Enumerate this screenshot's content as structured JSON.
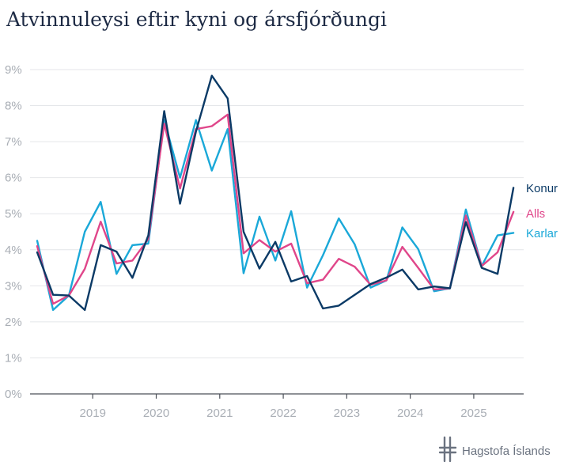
{
  "chart_data": {
    "type": "line",
    "title": "Atvinnuleysi eftir kyni og ársfjórðungi",
    "ylim": [
      0,
      9
    ],
    "y_ticks": [
      "0%",
      "1%",
      "2%",
      "3%",
      "4%",
      "5%",
      "6%",
      "7%",
      "8%",
      "9%"
    ],
    "x_ticks": [
      "2019",
      "2020",
      "2021",
      "2022",
      "2023",
      "2024",
      "2025"
    ],
    "x_start": 2018.125,
    "series": [
      {
        "name": "Karlar",
        "color": "#1aa8d8",
        "values": [
          4.25,
          2.33,
          2.73,
          4.5,
          5.33,
          3.33,
          4.13,
          4.17,
          7.6,
          6.0,
          7.6,
          6.2,
          7.35,
          3.35,
          4.92,
          3.7,
          5.07,
          2.95,
          3.85,
          4.87,
          4.15,
          2.95,
          3.15,
          4.62,
          4.02,
          2.85,
          2.93,
          5.12,
          3.55,
          4.4,
          4.47
        ]
      },
      {
        "name": "Alls",
        "color": "#e0468a",
        "values": [
          4.1,
          2.5,
          2.73,
          3.47,
          4.78,
          3.62,
          3.7,
          4.3,
          7.5,
          5.7,
          7.35,
          7.43,
          7.75,
          3.9,
          4.27,
          3.95,
          4.17,
          3.07,
          3.17,
          3.75,
          3.53,
          3.03,
          3.15,
          4.08,
          3.5,
          2.9,
          2.93,
          4.95,
          3.55,
          3.93,
          5.05
        ]
      },
      {
        "name": "Konur",
        "color": "#0b3a66",
        "values": [
          3.93,
          2.75,
          2.73,
          2.33,
          4.13,
          3.95,
          3.22,
          4.4,
          7.85,
          5.28,
          7.28,
          8.83,
          8.2,
          4.5,
          3.48,
          4.22,
          3.12,
          3.27,
          2.37,
          2.45,
          2.75,
          3.05,
          3.23,
          3.45,
          2.9,
          2.98,
          2.93,
          4.77,
          3.5,
          3.33,
          5.72
        ]
      }
    ],
    "legend_order": [
      "Konur",
      "Alls",
      "Karlar"
    ]
  },
  "branding": {
    "org_name": "Hagstofa Íslands"
  }
}
